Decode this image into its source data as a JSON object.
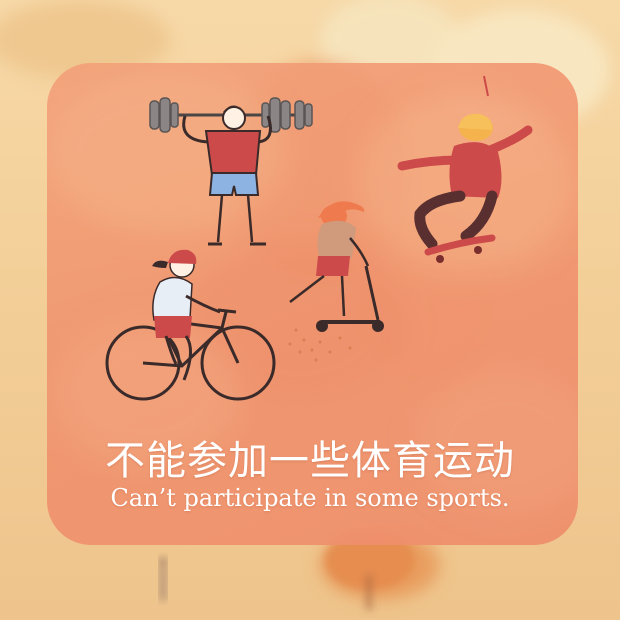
{
  "card": {
    "title_zh": "不能参加一些体育运动",
    "title_en": "Can’t participate in some sports."
  },
  "illustration": {
    "figures": [
      "weightlifter",
      "skateboarder",
      "scooter-rider",
      "cyclist"
    ]
  },
  "colors": {
    "background": "#f5d6a2",
    "card": "#f0956f",
    "shirt_red": "#d4484b",
    "hair_yellow": "#f4b34c",
    "shorts_blue": "#8db3e3",
    "outline": "#3a2a2a",
    "text": "#ffffff"
  }
}
